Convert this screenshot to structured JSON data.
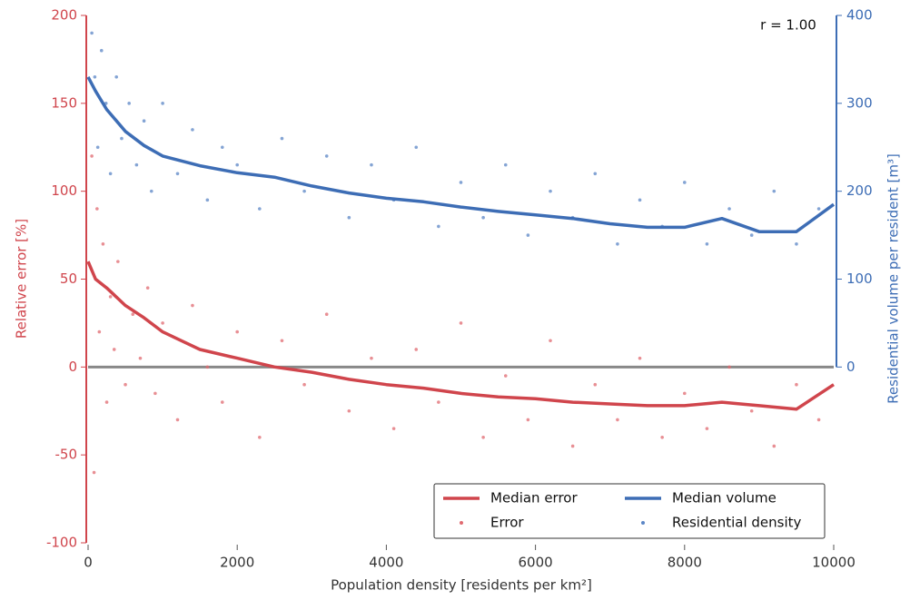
{
  "chart_data": {
    "type": "scatter",
    "annotation": "r =  1.00",
    "x_label": "Population density [residents per km²]",
    "y_label": "Relative error [%]",
    "y2_label": "Residential volume per resident [m³]",
    "xlim": [
      0,
      10000
    ],
    "xticks": [
      0,
      2000,
      4000,
      6000,
      8000,
      10000
    ],
    "ylim": [
      -100,
      200
    ],
    "yticks": [
      -100,
      -50,
      0,
      50,
      100,
      150,
      200
    ],
    "y2lim": [
      -200,
      400
    ],
    "y2ticks": [
      0,
      100,
      200,
      300,
      400
    ],
    "zero_line": true,
    "y_color": "#d0454c",
    "y2_color": "#3d6db5",
    "legend_position": "lower right",
    "series": [
      {
        "name": "Median error",
        "kind": "line",
        "axis": "y",
        "color": "#d0454c",
        "x": [
          0,
          100,
          250,
          500,
          750,
          1000,
          1250,
          1500,
          2000,
          2500,
          3000,
          3500,
          4000,
          4500,
          5000,
          5500,
          6000,
          6500,
          7000,
          7500,
          8000,
          8500,
          9000,
          9500,
          10000
        ],
        "values": [
          60,
          50,
          45,
          35,
          28,
          20,
          15,
          10,
          5,
          0,
          -3,
          -7,
          -10,
          -12,
          -15,
          -17,
          -18,
          -20,
          -21,
          -22,
          -22,
          -20,
          -22,
          -24,
          -10
        ]
      },
      {
        "name": "Median volume",
        "kind": "line",
        "axis": "y2",
        "color": "#3d6db5",
        "x": [
          0,
          100,
          250,
          500,
          750,
          1000,
          1500,
          2000,
          2500,
          3000,
          3500,
          4000,
          4500,
          5000,
          5500,
          6000,
          6500,
          7000,
          7500,
          8000,
          8500,
          9000,
          9500,
          10000
        ],
        "values": [
          330,
          314,
          293,
          268,
          252,
          240,
          229,
          221,
          216,
          206,
          198,
          192,
          188,
          182,
          177,
          173,
          169,
          163,
          159,
          159,
          169,
          154,
          154,
          185
        ]
      },
      {
        "name": "Error",
        "kind": "points",
        "axis": "y",
        "color": "#e06a70",
        "x": [
          50,
          80,
          120,
          150,
          200,
          250,
          300,
          350,
          400,
          500,
          600,
          700,
          800,
          900,
          1000,
          1200,
          1400,
          1600,
          1800,
          2000,
          2300,
          2600,
          2900,
          3200,
          3500,
          3800,
          4100,
          4400,
          4700,
          5000,
          5300,
          5600,
          5900,
          6200,
          6500,
          6800,
          7100,
          7400,
          7700,
          8000,
          8300,
          8600,
          8900,
          9200,
          9500,
          9800
        ],
        "values": [
          120,
          -60,
          90,
          20,
          70,
          -20,
          40,
          10,
          60,
          -10,
          30,
          5,
          45,
          -15,
          25,
          -30,
          35,
          0,
          -20,
          20,
          -40,
          15,
          -10,
          30,
          -25,
          5,
          -35,
          10,
          -20,
          25,
          -40,
          -5,
          -30,
          15,
          -45,
          -10,
          -30,
          5,
          -40,
          -15,
          -35,
          0,
          -25,
          -45,
          -10,
          -30
        ]
      },
      {
        "name": "Residential density",
        "kind": "points",
        "axis": "y2",
        "color": "#5b86c6",
        "x": [
          50,
          90,
          130,
          180,
          240,
          300,
          380,
          450,
          550,
          650,
          750,
          850,
          1000,
          1200,
          1400,
          1600,
          1800,
          2000,
          2300,
          2600,
          2900,
          3200,
          3500,
          3800,
          4100,
          4400,
          4700,
          5000,
          5300,
          5600,
          5900,
          6200,
          6500,
          6800,
          7100,
          7400,
          7700,
          8000,
          8300,
          8600,
          8900,
          9200,
          9500,
          9800
        ],
        "values": [
          380,
          330,
          250,
          360,
          300,
          220,
          330,
          260,
          300,
          230,
          280,
          200,
          300,
          220,
          270,
          190,
          250,
          230,
          180,
          260,
          200,
          240,
          170,
          230,
          190,
          250,
          160,
          210,
          170,
          230,
          150,
          200,
          170,
          220,
          140,
          190,
          160,
          210,
          140,
          180,
          150,
          200,
          140,
          180
        ]
      }
    ]
  }
}
